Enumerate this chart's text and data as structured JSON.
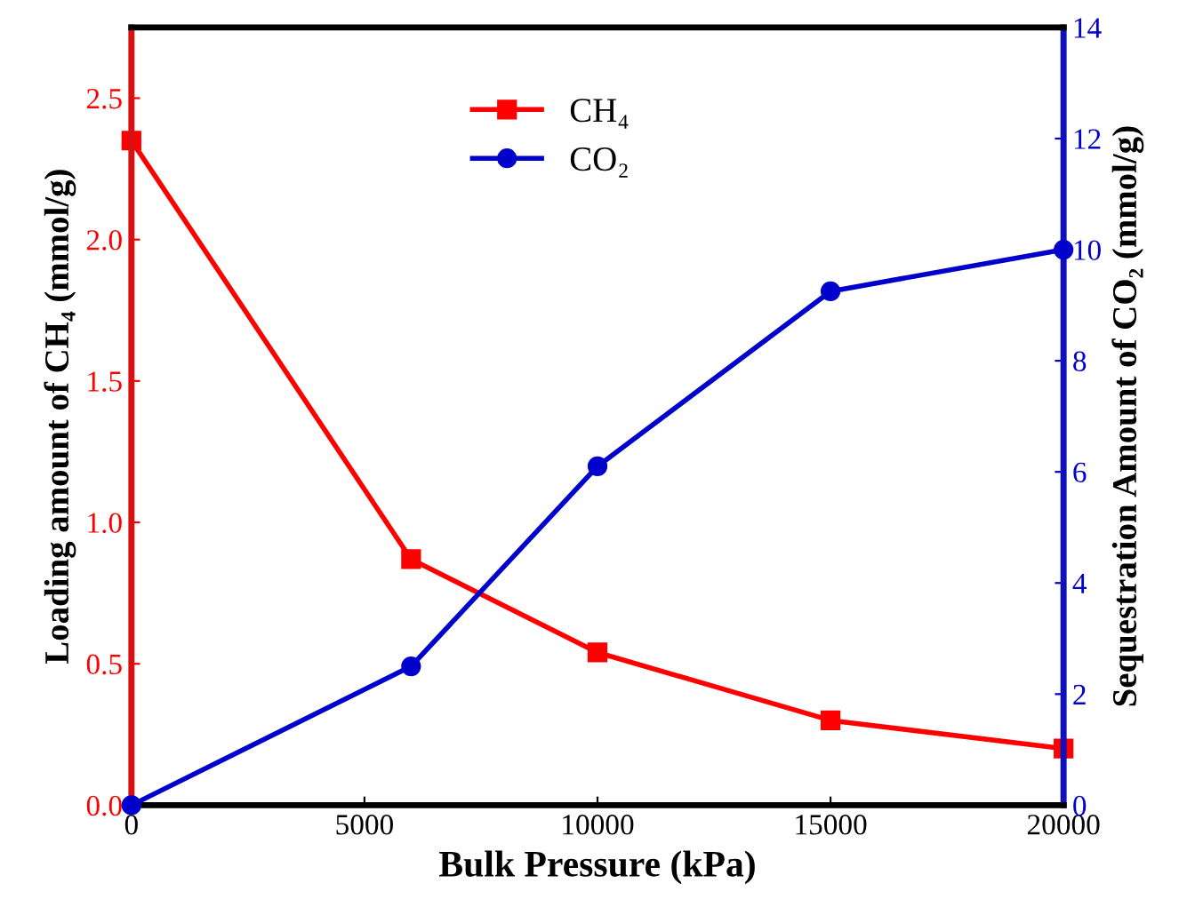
{
  "chart_data": {
    "type": "line",
    "xlabel": "Bulk Pressure (kPa)",
    "ylabel": "Loading amount of CH₄ (mmol/g)",
    "y2label": "Sequestration Amount of CO₂ (mmol/g)",
    "x": [
      0,
      6000,
      10000,
      15000,
      20000
    ],
    "series": [
      {
        "name": "CH₄",
        "color": "#ff0000",
        "marker": "square",
        "values": [
          2.35,
          0.87,
          0.54,
          0.3,
          0.2
        ]
      },
      {
        "name": "CO₂",
        "color": "#0000cc",
        "marker": "circle",
        "axis": "y2",
        "values": [
          0,
          2.5,
          6.1,
          9.25,
          10.0
        ]
      }
    ],
    "xlim": [
      0,
      20000
    ],
    "xticks": [
      0,
      5000,
      10000,
      15000,
      20000
    ],
    "ylim": [
      0,
      2.75
    ],
    "yticks": [
      {
        "value": 0,
        "label": "0.0"
      },
      0.5,
      {
        "value": 1,
        "label": "1.0"
      },
      1.5,
      {
        "value": 2,
        "label": "2.0"
      },
      2.5
    ],
    "y2lim": [
      0,
      14
    ],
    "y2ticks": [
      0,
      2,
      4,
      6,
      8,
      10,
      12,
      14
    ],
    "grid": false,
    "legend": "top",
    "line_style": "solid"
  }
}
